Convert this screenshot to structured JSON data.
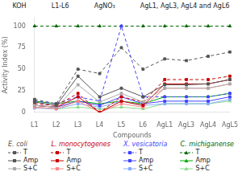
{
  "chart_data": {
    "type": "line",
    "xlabel": "Compounds",
    "ylabel": "Activity Index (%)",
    "categories": [
      "L1",
      "L2",
      "L3",
      "L4",
      "L5",
      "L6",
      "AgL1",
      "AgL3",
      "AgL4",
      "AgL5"
    ],
    "ylim": [
      0,
      110
    ],
    "yticks": [
      0,
      25,
      50,
      75,
      100
    ],
    "grid": false,
    "annotations": [
      "KOH",
      "L1-L6",
      "AgNO₃",
      "AgL1, AgL3, AgL4 and AgL6"
    ],
    "series": [
      {
        "group": "E. coli",
        "name": "T",
        "color": "#555555",
        "marker": "square",
        "line_style": "dashed",
        "values": [
          15,
          10,
          50,
          45,
          75,
          50,
          62,
          60,
          65,
          70
        ]
      },
      {
        "group": "E. coli",
        "name": "Amp",
        "color": "#555555",
        "marker": "square",
        "line_style": "solid",
        "values": [
          12,
          8,
          42,
          18,
          28,
          18,
          32,
          32,
          33,
          38
        ]
      },
      {
        "group": "E. coli",
        "name": "S+C",
        "color": "#aaaaaa",
        "marker": "square",
        "line_style": "solid",
        "values": [
          8,
          6,
          32,
          12,
          22,
          12,
          28,
          28,
          28,
          33
        ]
      },
      {
        "group": "L. monocytogenes",
        "name": "T",
        "color": "#cc0000",
        "marker": "square",
        "line_style": "dashed",
        "values": [
          10,
          8,
          22,
          0,
          18,
          12,
          38,
          38,
          38,
          42
        ]
      },
      {
        "group": "L. monocytogenes",
        "name": "Amp",
        "color": "#cc0000",
        "marker": "square",
        "line_style": "solid",
        "values": [
          8,
          6,
          18,
          0,
          13,
          8,
          33,
          33,
          33,
          38
        ]
      },
      {
        "group": "L. monocytogenes",
        "name": "S+C",
        "color": "#ff8888",
        "marker": "square",
        "line_style": "solid",
        "values": [
          6,
          4,
          13,
          0,
          10,
          6,
          28,
          28,
          28,
          33
        ]
      },
      {
        "group": "X. vesicatoria",
        "name": "T",
        "color": "#4444ff",
        "marker": "square",
        "line_style": "dashed",
        "values": [
          13,
          10,
          18,
          13,
          100,
          18,
          18,
          18,
          18,
          22
        ]
      },
      {
        "group": "X. vesicatoria",
        "name": "Amp",
        "color": "#4444ff",
        "marker": "square",
        "line_style": "solid",
        "values": [
          8,
          6,
          13,
          8,
          18,
          10,
          13,
          13,
          13,
          18
        ]
      },
      {
        "group": "X. vesicatoria",
        "name": "S+C",
        "color": "#88aaff",
        "marker": "square",
        "line_style": "solid",
        "values": [
          5,
          4,
          10,
          6,
          13,
          8,
          10,
          10,
          10,
          15
        ]
      },
      {
        "group": "C. michiganense",
        "name": "T",
        "color": "#006600",
        "marker": "triangle",
        "line_style": "dashed",
        "values": [
          100,
          100,
          100,
          100,
          100,
          100,
          100,
          100,
          100,
          100
        ]
      },
      {
        "group": "C. michiganense",
        "name": "Amp",
        "color": "#00aa00",
        "marker": "triangle",
        "line_style": "solid",
        "values": [
          13,
          10,
          13,
          10,
          13,
          10,
          18,
          18,
          18,
          22
        ]
      },
      {
        "group": "C. michiganense",
        "name": "S+C",
        "color": "#88dd88",
        "marker": "triangle",
        "line_style": "solid",
        "values": [
          6,
          4,
          6,
          4,
          6,
          4,
          10,
          10,
          10,
          13
        ]
      }
    ]
  }
}
